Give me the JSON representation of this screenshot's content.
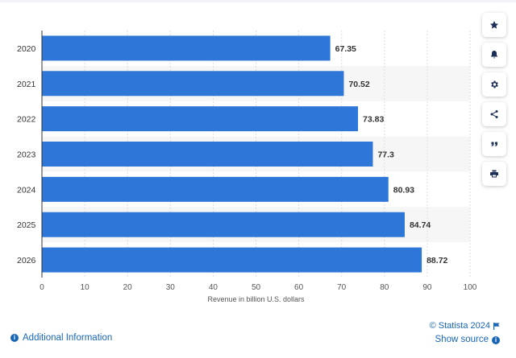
{
  "chart_data": {
    "type": "bar",
    "orientation": "horizontal",
    "categories": [
      "2020",
      "2021",
      "2022",
      "2023",
      "2024",
      "2025",
      "2026"
    ],
    "values": [
      67.35,
      70.52,
      73.83,
      77.3,
      80.93,
      84.74,
      88.72
    ],
    "value_labels": [
      "67.35",
      "70.52",
      "73.83",
      "77.3",
      "80.93",
      "84.74",
      "88.72"
    ],
    "xlabel": "Revenue in billion U.S. dollars",
    "ylabel": "",
    "xlim": [
      0,
      100
    ],
    "x_ticks": [
      0,
      10,
      20,
      30,
      40,
      50,
      60,
      70,
      80,
      90,
      100
    ],
    "grid": true,
    "bar_color": "#2e77d8"
  },
  "footer": {
    "credit": "© Statista 2024",
    "show_source": "Show source",
    "additional_info": "Additional Information"
  },
  "toolbar": {
    "icons": [
      "star-icon",
      "bell-icon",
      "gear-icon",
      "share-icon",
      "quote-icon",
      "print-icon"
    ]
  },
  "colors": {
    "link": "#1866b4",
    "icon": "#1c2f55",
    "stripe": "#f6f6f6"
  }
}
